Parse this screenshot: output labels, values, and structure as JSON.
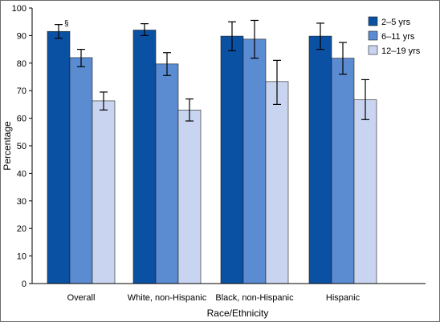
{
  "chart_data": {
    "type": "bar",
    "title": "",
    "xlabel": "Race/Ethnicity",
    "ylabel": "Percentage",
    "ylim": [
      0,
      100
    ],
    "yticks": [
      0,
      10,
      20,
      30,
      40,
      50,
      60,
      70,
      80,
      90,
      100
    ],
    "grid": false,
    "legend_position": "top-right",
    "categories": [
      "Overall",
      "White, non-Hispanic",
      "Black, non-Hispanic",
      "Hispanic"
    ],
    "series": [
      {
        "name": "2–5 yrs",
        "color": "#0b51a3",
        "values": [
          91.5,
          92.0,
          89.8,
          89.8
        ],
        "error_low": [
          89.0,
          90.0,
          84.5,
          85.0
        ],
        "error_high": [
          94.0,
          94.3,
          95.0,
          94.5
        ]
      },
      {
        "name": "6–11 yrs",
        "color": "#5b8bd1",
        "values": [
          82.0,
          79.7,
          88.7,
          81.8
        ],
        "error_low": [
          78.7,
          75.5,
          81.8,
          76.0
        ],
        "error_high": [
          85.0,
          83.8,
          95.5,
          87.5
        ]
      },
      {
        "name": "12–19 yrs",
        "color": "#c9d5f0",
        "values": [
          66.3,
          63.0,
          73.3,
          66.7
        ],
        "error_low": [
          63.0,
          59.0,
          65.0,
          59.5
        ],
        "error_high": [
          69.5,
          67.0,
          81.0,
          74.0
        ]
      }
    ],
    "annotations": [
      {
        "text": "§",
        "category_index": 0,
        "series_index": 0
      }
    ]
  }
}
